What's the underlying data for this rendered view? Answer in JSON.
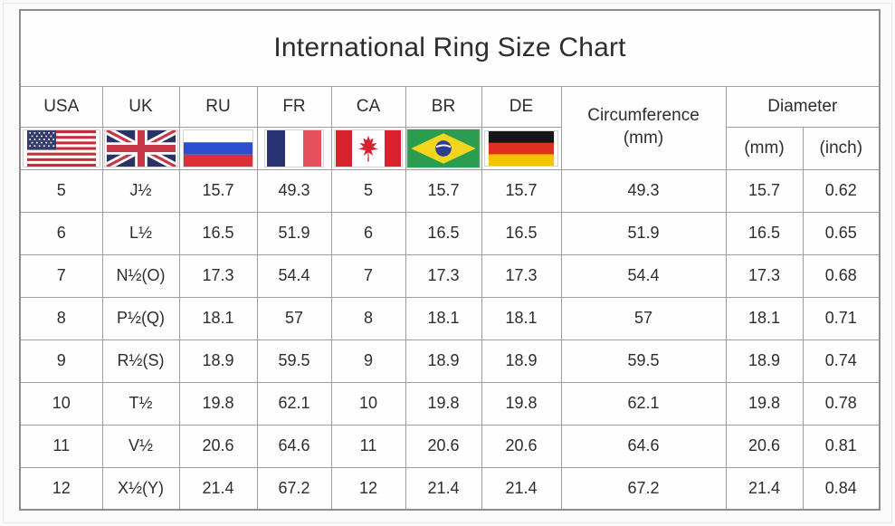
{
  "title": "International Ring Size Chart",
  "table": {
    "country_columns": [
      {
        "code": "USA",
        "flag": "usa"
      },
      {
        "code": "UK",
        "flag": "uk"
      },
      {
        "code": "RU",
        "flag": "russia"
      },
      {
        "code": "FR",
        "flag": "france"
      },
      {
        "code": "CA",
        "flag": "canada"
      },
      {
        "code": "BR",
        "flag": "brazil"
      },
      {
        "code": "DE",
        "flag": "germany"
      }
    ],
    "circumference_header": "Circumference",
    "circumference_unit": "(mm)",
    "diameter_header": "Diameter",
    "diameter_units": [
      "(mm)",
      "(inch)"
    ],
    "columns_order": [
      "USA",
      "UK",
      "RU",
      "FR",
      "CA",
      "BR",
      "DE",
      "Circumference (mm)",
      "Diameter (mm)",
      "Diameter (inch)"
    ],
    "rows": [
      [
        "5",
        "J½",
        "15.7",
        "49.3",
        "5",
        "15.7",
        "15.7",
        "49.3",
        "15.7",
        "0.62"
      ],
      [
        "6",
        "L½",
        "16.5",
        "51.9",
        "6",
        "16.5",
        "16.5",
        "51.9",
        "16.5",
        "0.65"
      ],
      [
        "7",
        "N½(O)",
        "17.3",
        "54.4",
        "7",
        "17.3",
        "17.3",
        "54.4",
        "17.3",
        "0.68"
      ],
      [
        "8",
        "P½(Q)",
        "18.1",
        "57",
        "8",
        "18.1",
        "18.1",
        "57",
        "18.1",
        "0.71"
      ],
      [
        "9",
        "R½(S)",
        "18.9",
        "59.5",
        "9",
        "18.9",
        "18.9",
        "59.5",
        "18.9",
        "0.74"
      ],
      [
        "10",
        "T½",
        "19.8",
        "62.1",
        "10",
        "19.8",
        "19.8",
        "62.1",
        "19.8",
        "0.78"
      ],
      [
        "11",
        "V½",
        "20.6",
        "64.6",
        "11",
        "20.6",
        "20.6",
        "64.6",
        "20.6",
        "0.81"
      ],
      [
        "12",
        "X½(Y)",
        "21.4",
        "67.2",
        "12",
        "21.4",
        "21.4",
        "67.2",
        "21.4",
        "0.84"
      ]
    ]
  },
  "colors": {
    "text": "#2d2d2d",
    "title_text": "#1b1b1b",
    "table_border": "#8d8d8d",
    "cell_border": "#9d9d9d",
    "background": "#fbfbfb"
  }
}
